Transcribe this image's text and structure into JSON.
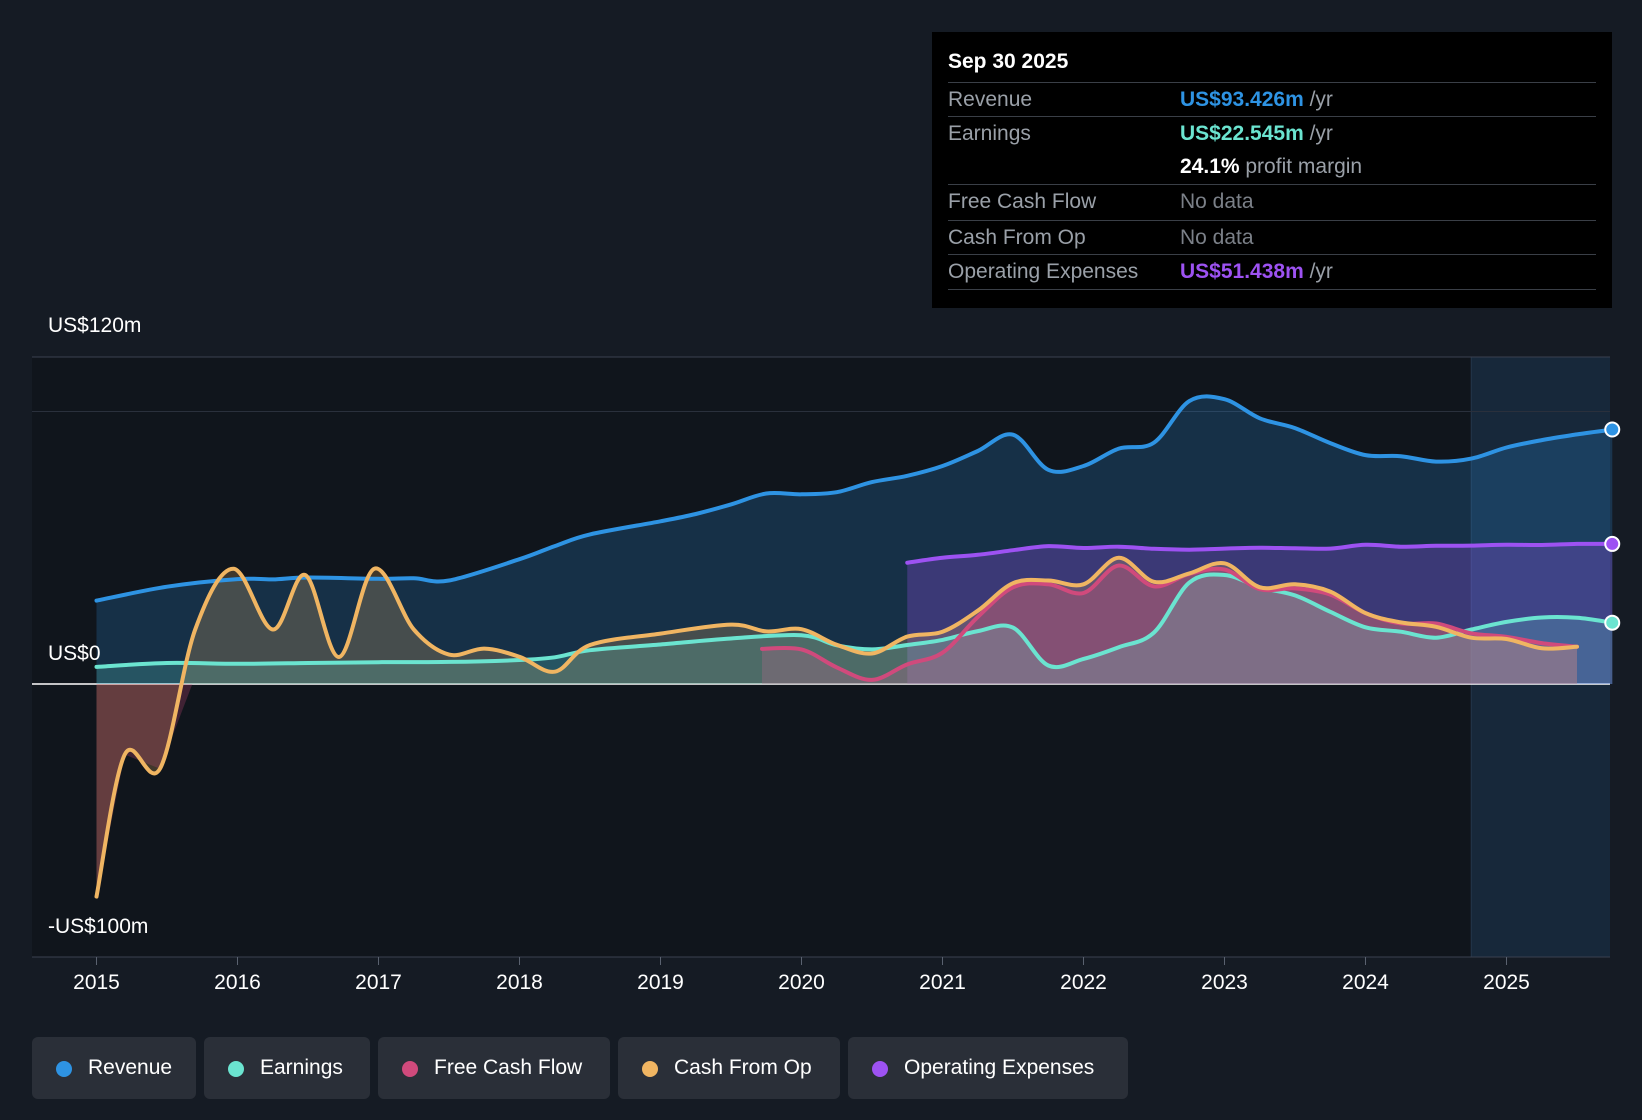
{
  "tooltip": {
    "date": "Sep 30 2025",
    "rows": [
      {
        "label": "Revenue",
        "value": "US$93.426m",
        "unit": " /yr"
      },
      {
        "label": "Earnings",
        "value": "US$22.545m",
        "unit": " /yr"
      },
      {
        "label": "",
        "value": "24.1%",
        "unit": " profit margin"
      },
      {
        "label": "Free Cash Flow",
        "value": "No data",
        "unit": ""
      },
      {
        "label": "Cash From Op",
        "value": "No data",
        "unit": ""
      },
      {
        "label": "Operating Expenses",
        "value": "US$51.438m",
        "unit": " /yr"
      }
    ]
  },
  "legend": [
    "Revenue",
    "Earnings",
    "Free Cash Flow",
    "Cash From Op",
    "Operating Expenses"
  ],
  "colors": {
    "background": "#151b24",
    "revenue": "#2e93e3",
    "earnings": "#6be4d0",
    "free_cash_flow": "#d04a7c",
    "cash_from_op": "#f0b562",
    "operating_expenses": "#9d52f2",
    "no_data": "#7b8088",
    "white": "#ffffff"
  },
  "chart_data": {
    "type": "line",
    "title": "",
    "xlabel": "",
    "ylabel": "",
    "ylim": [
      -100,
      120
    ],
    "xlim": [
      2015.0,
      2025.75
    ],
    "y_labels": [
      {
        "value": 120,
        "text": "US$120m"
      },
      {
        "value": 0,
        "text": "US$0"
      },
      {
        "value": -100,
        "text": "-US$100m"
      }
    ],
    "x_ticks": [
      2015,
      2016,
      2017,
      2018,
      2019,
      2020,
      2021,
      2022,
      2023,
      2024,
      2025
    ],
    "x_tick_labels": [
      "2015",
      "2016",
      "2017",
      "2018",
      "2019",
      "2020",
      "2021",
      "2022",
      "2023",
      "2024",
      "2025"
    ],
    "highlight_start": 2024.75,
    "series": [
      {
        "name": "Revenue",
        "key": "revenue",
        "points": [
          [
            2015.0,
            30.6
          ],
          [
            2015.5,
            35.7
          ],
          [
            2016.0,
            38.5
          ],
          [
            2016.25,
            38.4
          ],
          [
            2016.5,
            39.1
          ],
          [
            2017.0,
            38.6
          ],
          [
            2017.25,
            38.8
          ],
          [
            2017.5,
            38.0
          ],
          [
            2018.0,
            45.8
          ],
          [
            2018.25,
            50.6
          ],
          [
            2018.5,
            54.9
          ],
          [
            2019.0,
            59.7
          ],
          [
            2019.25,
            62.4
          ],
          [
            2019.5,
            65.9
          ],
          [
            2019.75,
            69.9
          ],
          [
            2020.0,
            69.6
          ],
          [
            2020.25,
            70.4
          ],
          [
            2020.5,
            74.1
          ],
          [
            2020.75,
            76.4
          ],
          [
            2021.0,
            80.0
          ],
          [
            2021.25,
            85.5
          ],
          [
            2021.5,
            91.5
          ],
          [
            2021.75,
            78.6
          ],
          [
            2022.0,
            80.0
          ],
          [
            2022.25,
            86.4
          ],
          [
            2022.5,
            88.6
          ],
          [
            2022.75,
            103.8
          ],
          [
            2023.0,
            104.5
          ],
          [
            2023.25,
            97.5
          ],
          [
            2023.5,
            93.9
          ],
          [
            2023.75,
            88.4
          ],
          [
            2024.0,
            84.0
          ],
          [
            2024.25,
            83.6
          ],
          [
            2024.5,
            81.6
          ],
          [
            2024.75,
            82.7
          ],
          [
            2025.0,
            86.8
          ],
          [
            2025.25,
            89.5
          ],
          [
            2025.5,
            91.6
          ],
          [
            2025.75,
            93.4
          ]
        ]
      },
      {
        "name": "Earnings",
        "key": "earnings",
        "points": [
          [
            2015.0,
            6.3
          ],
          [
            2015.5,
            7.7
          ],
          [
            2016.0,
            7.4
          ],
          [
            2016.5,
            7.7
          ],
          [
            2017.0,
            8.0
          ],
          [
            2017.5,
            8.1
          ],
          [
            2018.0,
            8.8
          ],
          [
            2018.25,
            9.8
          ],
          [
            2018.5,
            12.4
          ],
          [
            2019.0,
            14.5
          ],
          [
            2019.5,
            16.7
          ],
          [
            2020.0,
            17.9
          ],
          [
            2020.25,
            14.2
          ],
          [
            2020.5,
            12.7
          ],
          [
            2020.75,
            14.3
          ],
          [
            2021.0,
            16.2
          ],
          [
            2021.25,
            19.4
          ],
          [
            2021.5,
            20.7
          ],
          [
            2021.75,
            6.8
          ],
          [
            2022.0,
            9.2
          ],
          [
            2022.25,
            13.5
          ],
          [
            2022.5,
            18.9
          ],
          [
            2022.75,
            37.2
          ],
          [
            2023.0,
            40.0
          ],
          [
            2023.25,
            35.5
          ],
          [
            2023.5,
            32.5
          ],
          [
            2023.75,
            26.5
          ],
          [
            2024.0,
            20.8
          ],
          [
            2024.25,
            19.2
          ],
          [
            2024.5,
            17.0
          ],
          [
            2024.75,
            20.0
          ],
          [
            2025.0,
            22.8
          ],
          [
            2025.25,
            24.4
          ],
          [
            2025.5,
            24.3
          ],
          [
            2025.75,
            22.5
          ]
        ]
      },
      {
        "name": "Free Cash Flow",
        "key": "free_cash_flow",
        "points": [
          [
            2019.72,
            12.9
          ],
          [
            2020.0,
            12.7
          ],
          [
            2020.25,
            6.1
          ],
          [
            2020.5,
            1.5
          ],
          [
            2020.75,
            7.2
          ],
          [
            2021.0,
            11.5
          ],
          [
            2021.25,
            24.6
          ],
          [
            2021.5,
            35.5
          ],
          [
            2021.75,
            36.6
          ],
          [
            2022.0,
            33.4
          ],
          [
            2022.25,
            43.5
          ],
          [
            2022.5,
            35.8
          ],
          [
            2022.75,
            40.4
          ],
          [
            2023.0,
            42.0
          ],
          [
            2023.25,
            34.8
          ],
          [
            2023.5,
            35.1
          ],
          [
            2023.75,
            32.8
          ],
          [
            2024.0,
            26.0
          ],
          [
            2024.25,
            22.2
          ],
          [
            2024.5,
            22.2
          ],
          [
            2024.75,
            18.6
          ],
          [
            2025.0,
            17.3
          ],
          [
            2025.25,
            15.0
          ],
          [
            2025.5,
            13.7
          ]
        ]
      },
      {
        "name": "Cash From Op",
        "key": "cash_from_op",
        "points": [
          [
            2015.0,
            -78.0
          ],
          [
            2015.2,
            -25.9
          ],
          [
            2015.45,
            -31.1
          ],
          [
            2015.7,
            20.0
          ],
          [
            2015.97,
            42.3
          ],
          [
            2016.25,
            20.0
          ],
          [
            2016.48,
            40.0
          ],
          [
            2016.72,
            9.9
          ],
          [
            2016.97,
            42.3
          ],
          [
            2017.25,
            20.0
          ],
          [
            2017.5,
            10.8
          ],
          [
            2017.75,
            13.0
          ],
          [
            2018.0,
            10.0
          ],
          [
            2018.25,
            4.5
          ],
          [
            2018.5,
            14.3
          ],
          [
            2019.0,
            18.5
          ],
          [
            2019.5,
            21.8
          ],
          [
            2019.75,
            19.3
          ],
          [
            2020.0,
            20.1
          ],
          [
            2020.25,
            14.4
          ],
          [
            2020.5,
            11.2
          ],
          [
            2020.75,
            17.4
          ],
          [
            2021.0,
            19.2
          ],
          [
            2021.25,
            26.9
          ],
          [
            2021.5,
            37.0
          ],
          [
            2021.75,
            38.0
          ],
          [
            2022.0,
            36.6
          ],
          [
            2022.25,
            46.3
          ],
          [
            2022.5,
            37.5
          ],
          [
            2022.75,
            40.6
          ],
          [
            2023.0,
            44.3
          ],
          [
            2023.25,
            35.5
          ],
          [
            2023.5,
            36.6
          ],
          [
            2023.75,
            33.9
          ],
          [
            2024.0,
            26.0
          ],
          [
            2024.25,
            22.6
          ],
          [
            2024.5,
            21.0
          ],
          [
            2024.75,
            17.0
          ],
          [
            2025.0,
            16.5
          ],
          [
            2025.25,
            13.1
          ],
          [
            2025.5,
            13.7
          ]
        ]
      },
      {
        "name": "Operating Expenses",
        "key": "operating_expenses",
        "points": [
          [
            2020.75,
            44.5
          ],
          [
            2021.0,
            46.3
          ],
          [
            2021.25,
            47.4
          ],
          [
            2021.5,
            49.1
          ],
          [
            2021.75,
            50.6
          ],
          [
            2022.0,
            49.9
          ],
          [
            2022.25,
            50.4
          ],
          [
            2022.5,
            49.6
          ],
          [
            2022.75,
            49.3
          ],
          [
            2023.0,
            49.7
          ],
          [
            2023.25,
            50.0
          ],
          [
            2023.5,
            49.8
          ],
          [
            2023.75,
            49.7
          ],
          [
            2024.0,
            51.1
          ],
          [
            2024.25,
            50.4
          ],
          [
            2024.5,
            50.7
          ],
          [
            2024.75,
            50.8
          ],
          [
            2025.0,
            51.1
          ],
          [
            2025.25,
            51.0
          ],
          [
            2025.5,
            51.4
          ],
          [
            2025.75,
            51.4
          ]
        ]
      }
    ]
  }
}
